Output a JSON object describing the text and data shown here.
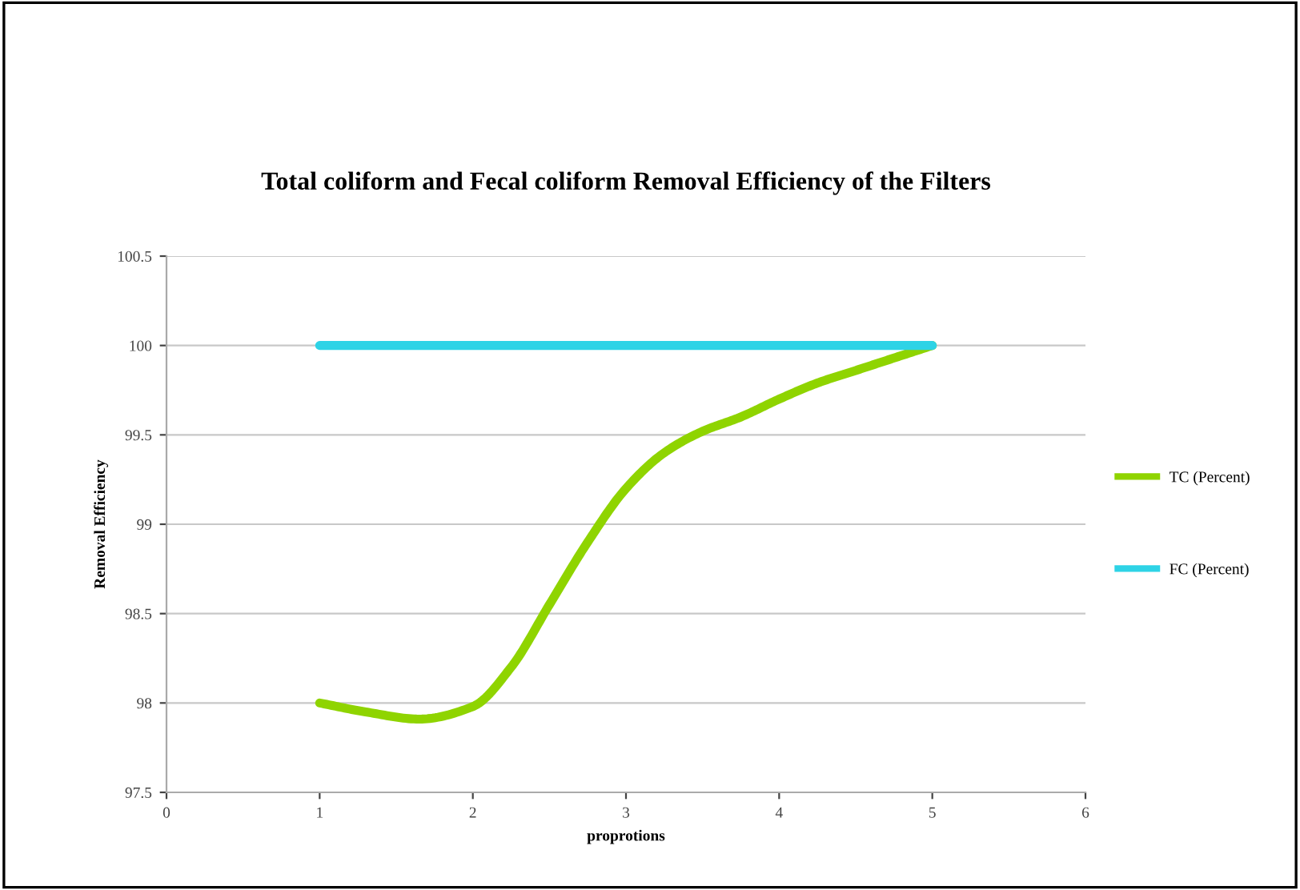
{
  "chart_data": {
    "type": "line",
    "title": "Total coliform and Fecal coliform Removal Efficiency of the Filters",
    "xlabel": "proprotions",
    "ylabel": "Removal Efficiency",
    "series": [
      {
        "name": "TC (Percent)",
        "color": "#8fd400",
        "x": [
          1,
          1.3,
          1.65,
          2,
          2.25,
          2.5,
          2.75,
          3,
          3.25,
          3.5,
          3.75,
          4,
          4.25,
          4.5,
          4.75,
          5
        ],
        "values": [
          98,
          97.95,
          97.91,
          97.98,
          98.2,
          98.55,
          98.9,
          99.2,
          99.4,
          99.52,
          99.6,
          99.7,
          99.79,
          99.86,
          99.93,
          100
        ]
      },
      {
        "name": "FC (Percent)",
        "color": "#2ed3e6",
        "x": [
          1,
          5
        ],
        "values": [
          100,
          100
        ]
      }
    ],
    "xlim": [
      0,
      6
    ],
    "xticks": [
      0,
      1,
      2,
      3,
      4,
      5,
      6
    ],
    "ylim": [
      97.5,
      100.5
    ],
    "yticks": [
      97.5,
      98,
      98.5,
      99,
      99.5,
      100,
      100.5
    ],
    "grid": "y",
    "legend": "right",
    "marker": "none",
    "line_style": "solid"
  }
}
